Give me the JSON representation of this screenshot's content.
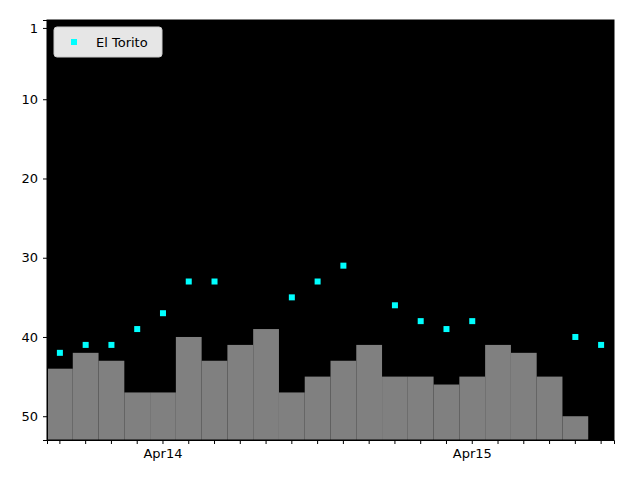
{
  "chart_data": {
    "type": "bar",
    "categories": [
      null,
      null,
      null,
      null,
      "Apr14",
      null,
      null,
      null,
      null,
      null,
      null,
      null,
      null,
      null,
      null,
      null,
      "Apr15",
      null,
      null,
      null,
      null,
      null
    ],
    "series": [
      {
        "type": "bar",
        "color": "#808080",
        "values": [
          44,
          42,
          43,
          47,
          47,
          40,
          43,
          41,
          39,
          47,
          45,
          43,
          41,
          45,
          45,
          46,
          45,
          41,
          42,
          45,
          50,
          null
        ]
      },
      {
        "name": "El Torito",
        "type": "scatter",
        "color": "#00ffff",
        "marker": "square",
        "values": [
          42,
          41,
          41,
          39,
          37,
          33,
          33,
          null,
          null,
          35,
          33,
          31,
          null,
          36,
          38,
          39,
          38,
          null,
          null,
          null,
          40,
          41
        ]
      }
    ],
    "ylim": [
      53,
      0
    ],
    "yticks": [
      1,
      10,
      20,
      30,
      40,
      50
    ],
    "legend": "upper left"
  }
}
